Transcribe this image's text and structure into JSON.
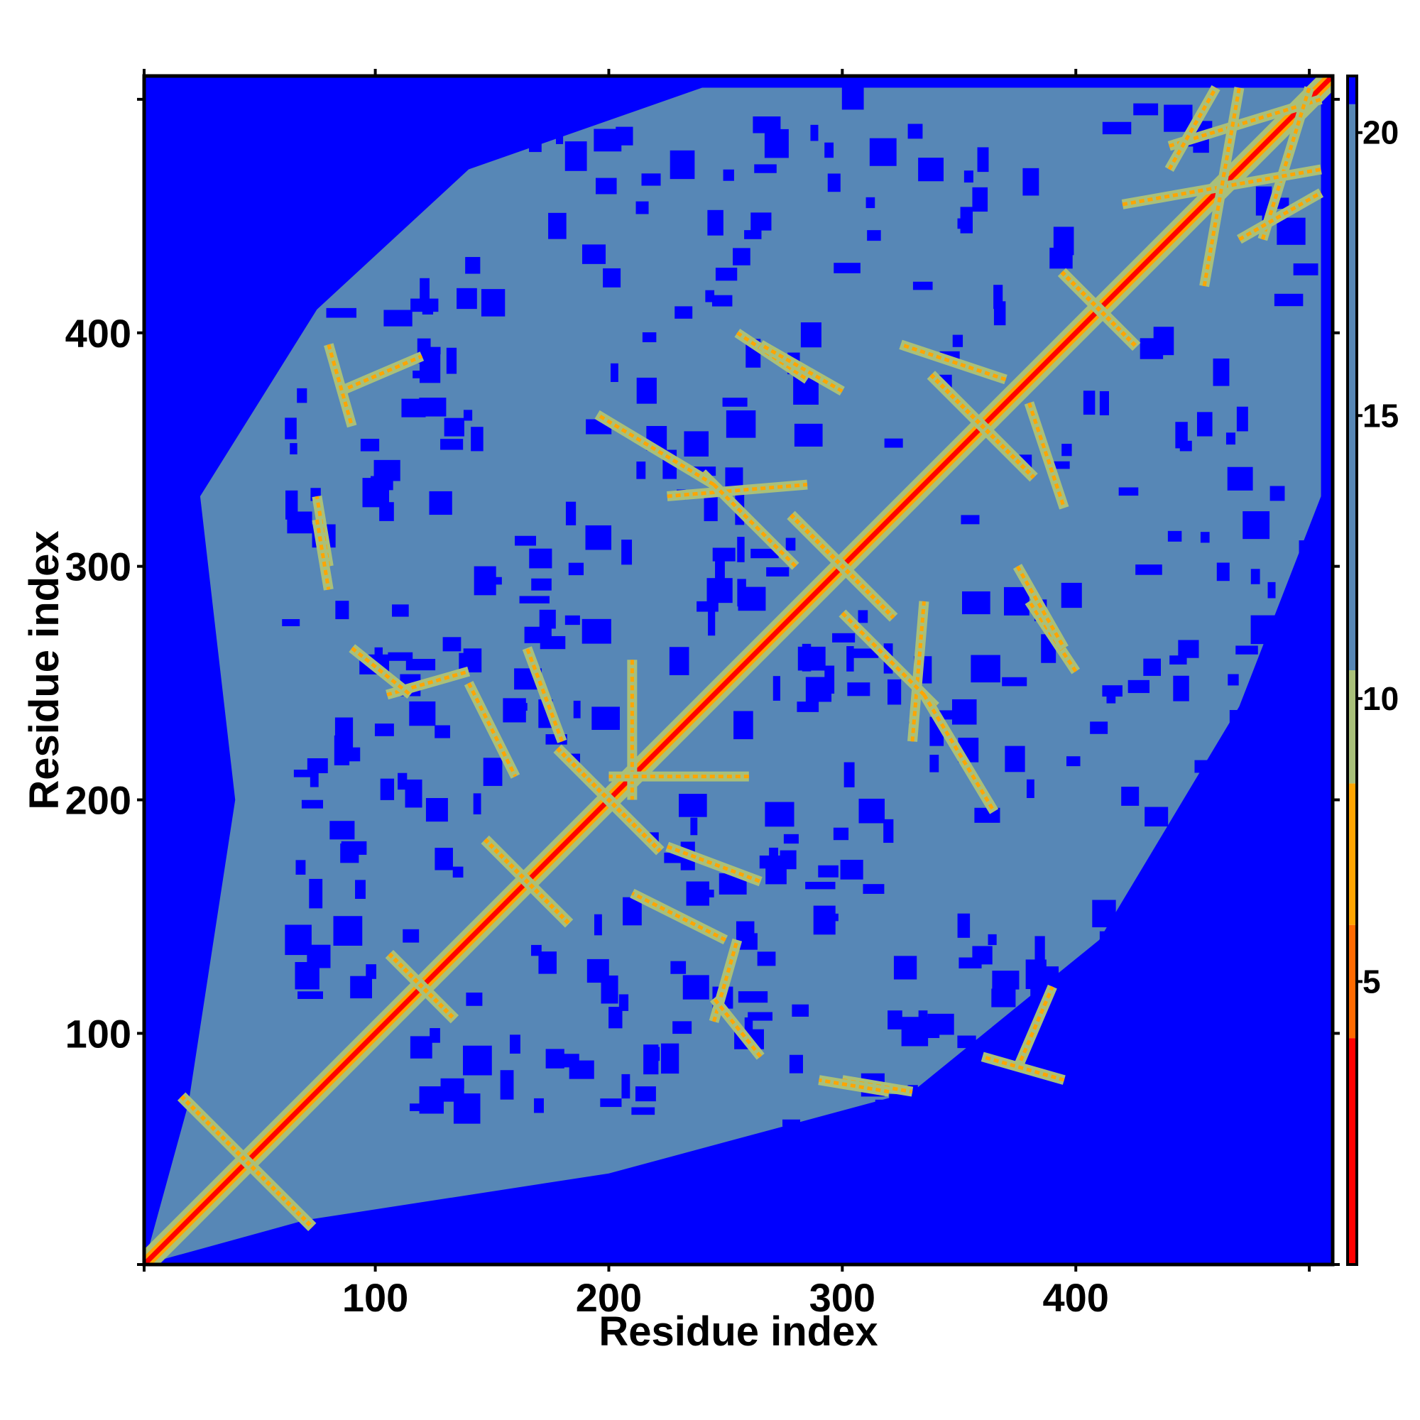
{
  "chart_data": {
    "type": "heatmap",
    "title": "",
    "xlabel": "Residue index",
    "ylabel": "Residue index",
    "xlim": [
      1,
      510
    ],
    "ylim": [
      1,
      510
    ],
    "x_ticks": [
      100,
      200,
      300,
      400
    ],
    "y_ticks": [
      100,
      200,
      300,
      400
    ],
    "x_tick_labels": [
      "100",
      "200",
      "300",
      "400"
    ],
    "y_tick_labels": [
      "100",
      "200",
      "300",
      "400"
    ],
    "symmetric": true,
    "diagonal_value": 0,
    "colorbar": {
      "range": [
        0,
        21
      ],
      "ticks": [
        5,
        10,
        15,
        20
      ],
      "tick_labels": [
        "5",
        "10",
        "15",
        "20"
      ],
      "colors": [
        {
          "from": 0,
          "to": 4,
          "color": "#ff0000"
        },
        {
          "from": 4,
          "to": 6,
          "color": "#ff6a00"
        },
        {
          "from": 6,
          "to": 8.5,
          "color": "#ffa500"
        },
        {
          "from": 8.5,
          "to": 10.5,
          "color": "#a9c07a"
        },
        {
          "from": 10.5,
          "to": 20.5,
          "color": "#5787b6"
        },
        {
          "from": 20.5,
          "to": 21,
          "color": "#0000ff"
        }
      ]
    },
    "background_color": "#0000ff",
    "core_color": "#5787b6",
    "core_extent_description_values": {
      "lower_left_blank_until_row": 70,
      "upper_right_blank_from_col": 420
    },
    "contact_features": [
      {
        "kind": "diagonal",
        "from": 1,
        "to": 510,
        "value": 2
      },
      {
        "kind": "cross",
        "center": [
          45,
          45
        ],
        "span": 28,
        "value": 6
      },
      {
        "kind": "cross",
        "center": [
          120,
          120
        ],
        "span": 14,
        "value": 7
      },
      {
        "kind": "cross",
        "center": [
          165,
          165
        ],
        "span": 18,
        "value": 7
      },
      {
        "kind": "cross",
        "center": [
          200,
          200
        ],
        "span": 22,
        "value": 6
      },
      {
        "kind": "cross",
        "center": [
          300,
          300
        ],
        "span": 22,
        "value": 6
      },
      {
        "kind": "cross",
        "center": [
          360,
          360
        ],
        "span": 22,
        "value": 6
      },
      {
        "kind": "cross",
        "center": [
          410,
          410
        ],
        "span": 16,
        "value": 7
      },
      {
        "kind": "band",
        "from": [
          440,
          480
        ],
        "to": [
          505,
          500
        ],
        "value": 7
      },
      {
        "kind": "band",
        "from": [
          420,
          455
        ],
        "to": [
          505,
          470
        ],
        "value": 7
      },
      {
        "kind": "band",
        "from": [
          470,
          440
        ],
        "to": [
          505,
          460
        ],
        "value": 7
      },
      {
        "kind": "band",
        "from": [
          225,
          330
        ],
        "to": [
          285,
          335
        ],
        "value": 7
      },
      {
        "kind": "band",
        "from": [
          210,
          260
        ],
        "to": [
          210,
          200
        ],
        "value": 8
      },
      {
        "kind": "band",
        "from": [
          300,
          280
        ],
        "to": [
          340,
          240
        ],
        "value": 7
      },
      {
        "kind": "band",
        "from": [
          335,
          245
        ],
        "to": [
          365,
          195
        ],
        "value": 7
      },
      {
        "kind": "band",
        "from": [
          245,
          105
        ],
        "to": [
          255,
          140
        ],
        "value": 7
      },
      {
        "kind": "band",
        "from": [
          300,
          80
        ],
        "to": [
          330,
          75
        ],
        "value": 7
      },
      {
        "kind": "band",
        "from": [
          375,
          85
        ],
        "to": [
          390,
          120
        ],
        "value": 8
      },
      {
        "kind": "band",
        "from": [
          80,
          395
        ],
        "to": [
          90,
          360
        ],
        "value": 8
      },
      {
        "kind": "band",
        "from": [
          75,
          320
        ],
        "to": [
          80,
          290
        ],
        "value": 8
      },
      {
        "kind": "band",
        "from": [
          90,
          265
        ],
        "to": [
          115,
          245
        ],
        "value": 7
      },
      {
        "kind": "band",
        "from": [
          255,
          400
        ],
        "to": [
          285,
          380
        ],
        "value": 8
      },
      {
        "kind": "band",
        "from": [
          380,
          370
        ],
        "to": [
          395,
          325
        ],
        "value": 8
      },
      {
        "kind": "band",
        "from": [
          375,
          300
        ],
        "to": [
          395,
          265
        ],
        "value": 8
      },
      {
        "kind": "band",
        "from": [
          140,
          250
        ],
        "to": [
          160,
          210
        ],
        "value": 8
      },
      {
        "kind": "band",
        "from": [
          225,
          180
        ],
        "to": [
          265,
          165
        ],
        "value": 8
      }
    ]
  }
}
